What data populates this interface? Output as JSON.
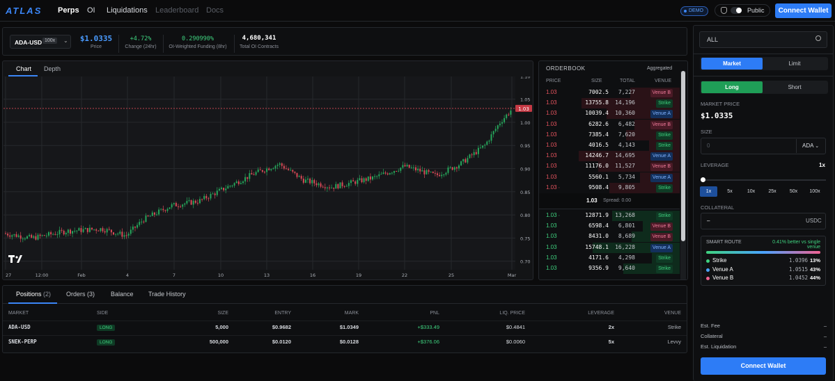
{
  "nav": {
    "logo": "ATLAS",
    "items": [
      {
        "label": "Perps"
      },
      {
        "label": "OI"
      },
      {
        "label": "Liquidations"
      },
      {
        "label": "Leaderboard"
      },
      {
        "label": "Docs"
      }
    ],
    "demo_badge": "DEMO",
    "public_label": "Public",
    "connect_label": "Connect Wallet"
  },
  "market": {
    "symbol": "ADA-USD",
    "leverage_badge": "100x",
    "price": "$1.0335",
    "price_label": "Price",
    "change": "+4.72%",
    "change_label": "Change (24hr)",
    "funding": "0.290990%",
    "funding_label": "OI-Weighted Funding (8hr)",
    "oi": "4,680,341",
    "oi_label": "Total OI Contracts"
  },
  "chart": {
    "tabs": [
      "Chart",
      "Depth"
    ],
    "current_price_tag": "1.03",
    "y_ticks": [
      "1.10",
      "1.05",
      "1.00",
      "0.95",
      "0.90",
      "0.85",
      "0.80",
      "0.75",
      "0.70"
    ],
    "x_ticks": [
      "27",
      "12:00",
      "Feb",
      "4",
      "7",
      "10",
      "13",
      "16",
      "19",
      "22",
      "25",
      "Mar"
    ]
  },
  "orderbook": {
    "title": "ORDERBOOK",
    "mode": "Aggregated",
    "headers": [
      "PRICE",
      "SIZE",
      "TOTAL",
      "VENUE"
    ],
    "asks": [
      {
        "price": "1.03",
        "size": "7002.5",
        "total": "7,227",
        "venue": "Venue B"
      },
      {
        "price": "1.03",
        "size": "13755.8",
        "total": "14,196",
        "venue": "Strike"
      },
      {
        "price": "1.03",
        "size": "10039.4",
        "total": "10,360",
        "venue": "Venue A"
      },
      {
        "price": "1.03",
        "size": "6282.6",
        "total": "6,482",
        "venue": "Venue B"
      },
      {
        "price": "1.03",
        "size": "7385.4",
        "total": "7,620",
        "venue": "Strike"
      },
      {
        "price": "1.03",
        "size": "4016.5",
        "total": "4,143",
        "venue": "Strike"
      },
      {
        "price": "1.03",
        "size": "14246.7",
        "total": "14,695",
        "venue": "Venue A"
      },
      {
        "price": "1.03",
        "size": "11176.0",
        "total": "11,527",
        "venue": "Venue B"
      },
      {
        "price": "1.03",
        "size": "5560.1",
        "total": "5,734",
        "venue": "Venue A"
      },
      {
        "price": "1.03 ∙",
        "size": "9508.4",
        "total": "9,805",
        "venue": "Strike"
      }
    ],
    "mid": "1.03",
    "spread": "Spread: 0.00",
    "bids": [
      {
        "price": "1.03 ∙",
        "size": "12871.9",
        "total": "13,268",
        "venue": "Strike"
      },
      {
        "price": "1.03",
        "size": "6598.4",
        "total": "6,801",
        "venue": "Venue B"
      },
      {
        "price": "1.03",
        "size": "8431.0",
        "total": "8,689",
        "venue": "Venue B"
      },
      {
        "price": "1.03",
        "size": "15748.1",
        "total": "16,228",
        "venue": "Venue A"
      },
      {
        "price": "1.03",
        "size": "4171.6",
        "total": "4,298",
        "venue": "Strike"
      },
      {
        "price": "1.03",
        "size": "9356.9",
        "total": "9,640",
        "venue": "Strike"
      }
    ]
  },
  "positions": {
    "tabs": [
      "Positions",
      "Orders (3)",
      "Balance",
      "Trade History"
    ],
    "positions_count": "(2)",
    "headers": [
      "MARKET",
      "SIDE",
      "SIZE",
      "ENTRY",
      "MARK",
      "PNL",
      "LIQ. PRICE",
      "LEVERAGE",
      "VENUE"
    ],
    "rows": [
      {
        "market": "ADA-USD",
        "side": "LONG",
        "size": "5,000",
        "entry": "$0.9682",
        "mark": "$1.0349",
        "pnl": "+$333.49",
        "liq": "$0.4841",
        "lev": "2x",
        "venue": "Strike"
      },
      {
        "market": "SNEK-PERP",
        "side": "LONG",
        "size": "500,000",
        "entry": "$0.0120",
        "mark": "$0.0128",
        "pnl": "+$376.06",
        "liq": "$0.0060",
        "lev": "5x",
        "venue": "Levvy"
      }
    ]
  },
  "order": {
    "search_value": "ALL",
    "order_types": [
      "Market",
      "Limit"
    ],
    "sides": [
      "Long",
      "Short"
    ],
    "market_price_label": "MARKET PRICE",
    "market_price": "$1.0335",
    "size_label": "SIZE",
    "size_placeholder": "0",
    "size_unit": "ADA",
    "leverage_label": "LEVERAGE",
    "leverage_value": "1x",
    "leverage_opts": [
      "1x",
      "5x",
      "10x",
      "25x",
      "50x",
      "100x"
    ],
    "collateral_label": "COLLATERAL",
    "collateral_value": "–",
    "collateral_unit": "USDC",
    "smart_route": {
      "title": "SMART ROUTE",
      "note": "0.41% better vs single venue",
      "venues": [
        {
          "name": "Strike",
          "price": "1.0396",
          "pct": "13%",
          "color": "#3fd27f"
        },
        {
          "name": "Venue A",
          "price": "1.0515",
          "pct": "43%",
          "color": "#4aa3ff"
        },
        {
          "name": "Venue B",
          "price": "1.0452",
          "pct": "44%",
          "color": "#f06292"
        }
      ]
    },
    "est": [
      {
        "label": "Est. Fee",
        "value": "–"
      },
      {
        "label": "Collateral",
        "value": "–"
      },
      {
        "label": "Est. Liquidation",
        "value": "–"
      }
    ],
    "submit": "Connect Wallet"
  }
}
